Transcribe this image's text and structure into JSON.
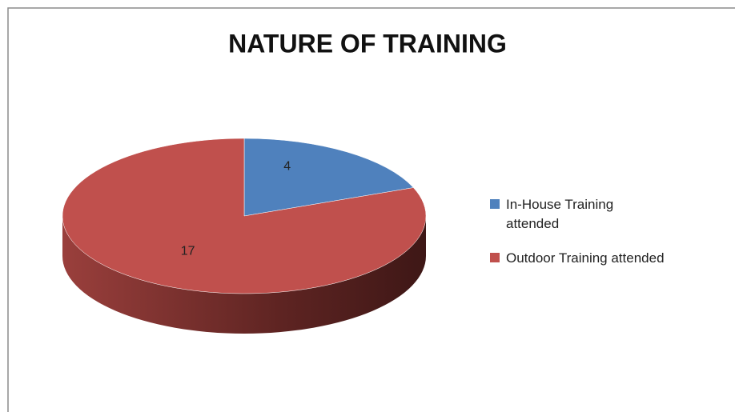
{
  "chart_data": {
    "type": "pie",
    "title": "NATURE OF TRAINING",
    "categories": [
      "In-House Training attended",
      "Outdoor Training attended"
    ],
    "values": [
      4,
      17
    ],
    "colors": [
      "#4f81bd",
      "#c0504d"
    ],
    "legend": "right"
  }
}
